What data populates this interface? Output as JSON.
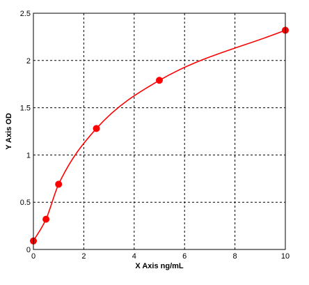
{
  "chart_data": {
    "type": "scatter",
    "title": "",
    "xlabel": "X Axis ng/mL",
    "ylabel": "Y Axis OD",
    "xlim": [
      0,
      10
    ],
    "ylim": [
      0,
      2.5
    ],
    "x_ticks": [
      0,
      2,
      4,
      6,
      8,
      10
    ],
    "y_ticks": [
      0,
      0.5,
      1,
      1.5,
      2,
      2.5
    ],
    "x_tick_labels": [
      "0",
      "2",
      "4",
      "6",
      "8",
      "10"
    ],
    "y_tick_labels": [
      "0",
      "0.5",
      "1",
      "1.5",
      "2",
      "2.5"
    ],
    "grid": true,
    "legend": "none",
    "series": [
      {
        "x": [
          0,
          0.5,
          1,
          2.5,
          5,
          10
        ],
        "y": [
          0.09,
          0.32,
          0.69,
          1.28,
          1.79,
          2.32
        ],
        "color": "#ff0000",
        "fit_curve": true
      }
    ]
  }
}
